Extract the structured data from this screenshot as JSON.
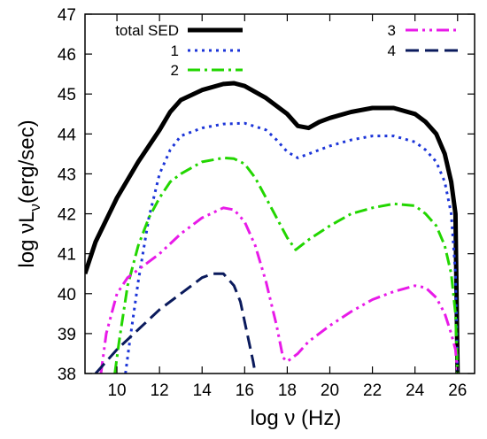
{
  "chart_data": {
    "type": "line",
    "title": "",
    "xlabel": "log ν (Hz)",
    "ylabel": {
      "prefix": "log νL",
      "sub": "ν",
      "suffix": "(erg/sec)"
    },
    "xlim": [
      8.5,
      26.8
    ],
    "ylim": [
      38,
      47
    ],
    "xticks": [
      10,
      12,
      14,
      16,
      18,
      20,
      22,
      24,
      26
    ],
    "yticks": [
      38,
      39,
      40,
      41,
      42,
      43,
      44,
      45,
      46,
      47
    ],
    "grid": false,
    "legend_position": "top",
    "series": [
      {
        "name": "total SED",
        "color": "#000000",
        "dash": "solid",
        "width": 5,
        "x": [
          8.5,
          9.0,
          10.0,
          11.0,
          12.0,
          12.5,
          13.0,
          14.0,
          15.0,
          15.5,
          16.0,
          17.0,
          18.0,
          18.5,
          19.0,
          19.5,
          20.0,
          21.0,
          22.0,
          23.0,
          24.0,
          24.5,
          25.0,
          25.4,
          25.7,
          25.9,
          26.0
        ],
        "y": [
          40.5,
          41.3,
          42.4,
          43.3,
          44.1,
          44.55,
          44.85,
          45.1,
          45.25,
          45.27,
          45.2,
          44.9,
          44.5,
          44.2,
          44.15,
          44.3,
          44.4,
          44.55,
          44.65,
          44.65,
          44.5,
          44.3,
          44.0,
          43.5,
          42.8,
          42.0,
          38.0
        ]
      },
      {
        "name": "1",
        "color": "#1c35d8",
        "dash": "dot",
        "width": 3,
        "x": [
          10.4,
          10.6,
          11.0,
          11.5,
          12.0,
          12.5,
          13.0,
          14.0,
          15.0,
          16.0,
          17.0,
          17.5,
          18.0,
          18.5,
          19.0,
          20.0,
          21.0,
          22.0,
          23.0,
          24.0,
          24.5,
          25.0,
          25.4,
          25.7,
          25.9,
          26.0
        ],
        "y": [
          38.0,
          38.8,
          40.3,
          41.9,
          43.0,
          43.6,
          43.95,
          44.15,
          44.25,
          44.27,
          44.1,
          43.85,
          43.55,
          43.4,
          43.5,
          43.7,
          43.85,
          43.95,
          43.95,
          43.8,
          43.6,
          43.3,
          42.8,
          42.0,
          40.5,
          38.0
        ]
      },
      {
        "name": "2",
        "color": "#22d600",
        "dash": "dashdot",
        "width": 3,
        "x": [
          9.9,
          10.1,
          10.5,
          11.0,
          11.5,
          12.0,
          12.5,
          13.0,
          14.0,
          15.0,
          15.5,
          16.0,
          16.5,
          17.0,
          17.5,
          18.0,
          18.4,
          19.0,
          20.0,
          21.0,
          22.0,
          23.0,
          24.0,
          24.5,
          25.0,
          25.4,
          25.7,
          25.9,
          26.0
        ],
        "y": [
          38.0,
          38.8,
          40.2,
          41.2,
          41.9,
          42.4,
          42.8,
          43.0,
          43.3,
          43.4,
          43.38,
          43.25,
          42.9,
          42.4,
          41.9,
          41.4,
          41.1,
          41.35,
          41.7,
          42.0,
          42.15,
          42.25,
          42.2,
          42.0,
          41.7,
          41.2,
          40.5,
          39.5,
          38.0
        ]
      },
      {
        "name": "3",
        "color": "#e81ae8",
        "dash": "dashdotdot",
        "width": 3,
        "x": [
          9.25,
          9.5,
          10.0,
          10.5,
          11.0,
          12.0,
          13.0,
          14.0,
          15.0,
          15.5,
          16.0,
          16.5,
          17.0,
          17.5,
          17.8,
          18.0,
          18.5,
          19.0,
          20.0,
          21.0,
          22.0,
          23.0,
          24.0,
          24.5,
          25.0,
          25.4,
          25.7,
          25.9,
          26.0
        ],
        "y": [
          38.0,
          39.0,
          40.0,
          40.4,
          40.6,
          41.0,
          41.5,
          41.9,
          42.15,
          42.1,
          41.8,
          41.2,
          40.3,
          39.2,
          38.4,
          38.3,
          38.5,
          38.8,
          39.2,
          39.55,
          39.85,
          40.05,
          40.2,
          40.15,
          39.9,
          39.5,
          39.0,
          38.6,
          38.0
        ]
      },
      {
        "name": "4",
        "color": "#0a1a5c",
        "dash": "dash",
        "width": 3,
        "x": [
          9.0,
          10.0,
          11.0,
          12.0,
          13.0,
          14.0,
          14.5,
          15.0,
          15.5,
          15.8,
          16.0,
          16.2,
          16.4,
          16.5
        ],
        "y": [
          38.0,
          38.6,
          39.1,
          39.6,
          40.0,
          40.4,
          40.5,
          40.5,
          40.2,
          39.8,
          39.3,
          38.8,
          38.3,
          38.0
        ]
      }
    ]
  }
}
